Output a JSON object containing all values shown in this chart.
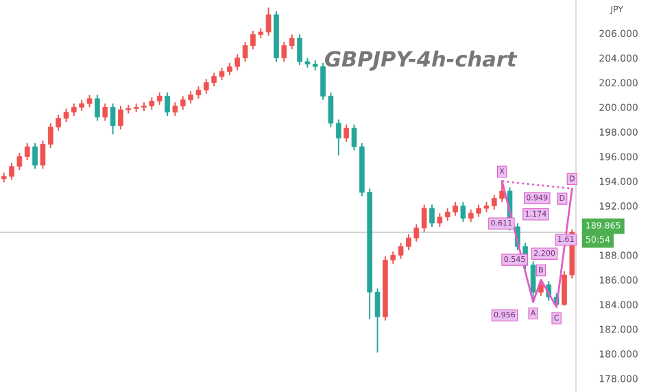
{
  "chart_data": {
    "type": "candlestick",
    "title": "GBPJPY-4h-chart",
    "categories": [
      null,
      null,
      null,
      null,
      null,
      null,
      null,
      null,
      null,
      null,
      null,
      null,
      null,
      null,
      null,
      null,
      null,
      null,
      null,
      null,
      null,
      null,
      null,
      null,
      null,
      null,
      null,
      null,
      null,
      null,
      null,
      null,
      null,
      null,
      null,
      null,
      null,
      null,
      null,
      null,
      null,
      null,
      null,
      null,
      null,
      null,
      null,
      null,
      null,
      null,
      null,
      null,
      null,
      null,
      null,
      null,
      null,
      null,
      null,
      null,
      null,
      null,
      null,
      null,
      null,
      null,
      null,
      null,
      null,
      null,
      null,
      null,
      null,
      null
    ],
    "ohlc": [
      [
        194.2,
        194.7,
        193.9,
        194.4
      ],
      [
        194.4,
        195.5,
        194.1,
        195.2
      ],
      [
        195.2,
        196.3,
        194.9,
        196.0
      ],
      [
        196.0,
        197.1,
        195.7,
        196.8
      ],
      [
        196.8,
        197.1,
        195.0,
        195.3
      ],
      [
        195.3,
        197.3,
        195.0,
        197.0
      ],
      [
        197.0,
        198.7,
        196.7,
        198.4
      ],
      [
        198.4,
        199.4,
        198.1,
        199.1
      ],
      [
        199.1,
        199.9,
        198.8,
        199.6
      ],
      [
        199.6,
        200.3,
        199.3,
        200.0
      ],
      [
        200.0,
        200.6,
        199.7,
        200.3
      ],
      [
        200.3,
        201.0,
        200.0,
        200.7
      ],
      [
        200.7,
        201.0,
        198.9,
        199.2
      ],
      [
        199.2,
        200.3,
        198.9,
        200.0
      ],
      [
        200.0,
        200.3,
        197.8,
        198.5
      ],
      [
        198.5,
        200.1,
        198.2,
        199.8
      ],
      [
        199.8,
        200.2,
        199.5,
        199.9
      ],
      [
        199.9,
        200.3,
        199.6,
        200.0
      ],
      [
        200.0,
        200.4,
        199.7,
        200.1
      ],
      [
        200.1,
        200.8,
        199.8,
        200.5
      ],
      [
        200.5,
        201.2,
        200.2,
        200.9
      ],
      [
        200.9,
        201.2,
        199.3,
        199.6
      ],
      [
        199.6,
        200.4,
        199.3,
        200.1
      ],
      [
        200.1,
        200.9,
        199.8,
        200.6
      ],
      [
        200.6,
        201.3,
        200.3,
        201.0
      ],
      [
        201.0,
        201.7,
        200.7,
        201.4
      ],
      [
        201.4,
        202.3,
        201.1,
        202.0
      ],
      [
        202.0,
        202.8,
        201.7,
        202.5
      ],
      [
        202.5,
        203.2,
        202.2,
        202.9
      ],
      [
        202.9,
        203.6,
        202.6,
        203.3
      ],
      [
        203.3,
        204.3,
        203.0,
        204.0
      ],
      [
        204.0,
        205.3,
        203.7,
        205.0
      ],
      [
        205.0,
        206.2,
        204.7,
        205.9
      ],
      [
        205.9,
        206.4,
        205.6,
        206.1
      ],
      [
        206.1,
        208.1,
        205.8,
        207.5
      ],
      [
        207.5,
        207.8,
        203.7,
        204.0
      ],
      [
        204.0,
        205.3,
        203.7,
        205.0
      ],
      [
        205.0,
        205.9,
        204.7,
        205.6
      ],
      [
        205.6,
        205.9,
        203.4,
        203.7
      ],
      [
        203.7,
        204.0,
        203.2,
        203.5
      ],
      [
        203.5,
        203.8,
        203.0,
        203.3
      ],
      [
        203.3,
        203.6,
        200.6,
        200.9
      ],
      [
        200.9,
        201.2,
        198.4,
        198.7
      ],
      [
        198.7,
        199.0,
        196.1,
        197.5
      ],
      [
        197.5,
        198.6,
        197.2,
        198.3
      ],
      [
        198.3,
        198.6,
        196.5,
        196.8
      ],
      [
        196.8,
        197.1,
        192.8,
        193.1
      ],
      [
        193.1,
        193.4,
        182.8,
        185.0
      ],
      [
        185.0,
        185.3,
        180.1,
        183.0
      ],
      [
        183.0,
        187.9,
        182.7,
        187.6
      ],
      [
        187.6,
        188.3,
        187.3,
        188.0
      ],
      [
        188.0,
        189.0,
        187.7,
        188.7
      ],
      [
        188.7,
        189.7,
        188.4,
        189.4
      ],
      [
        189.4,
        190.5,
        189.1,
        190.2
      ],
      [
        190.2,
        192.1,
        189.9,
        191.8
      ],
      [
        191.8,
        192.1,
        190.3,
        190.6
      ],
      [
        190.6,
        191.4,
        190.3,
        191.1
      ],
      [
        191.1,
        191.8,
        190.8,
        191.5
      ],
      [
        191.5,
        192.3,
        191.2,
        192.0
      ],
      [
        192.0,
        192.3,
        190.7,
        191.0
      ],
      [
        191.0,
        191.7,
        190.7,
        191.4
      ],
      [
        191.4,
        192.1,
        191.1,
        191.8
      ],
      [
        191.8,
        192.3,
        191.5,
        192.0
      ],
      [
        192.0,
        192.9,
        191.7,
        192.6
      ],
      [
        192.6,
        194.0,
        192.3,
        193.2
      ],
      [
        193.2,
        193.5,
        190.0,
        190.3
      ],
      [
        190.3,
        190.6,
        188.4,
        188.7
      ],
      [
        188.7,
        189.0,
        186.9,
        187.2
      ],
      [
        187.2,
        187.5,
        184.2,
        185.0
      ],
      [
        185.0,
        186.0,
        184.7,
        185.6
      ],
      [
        185.6,
        185.9,
        184.3,
        184.6
      ],
      [
        184.6,
        184.9,
        183.8,
        184.0
      ],
      [
        184.0,
        186.7,
        183.9,
        186.4
      ],
      [
        186.4,
        190.1,
        186.1,
        189.865
      ]
    ],
    "colors": [
      "#ef5350",
      "#ef5350",
      "#ef5350",
      "#ef5350",
      "#26a69a",
      "#ef5350",
      "#ef5350",
      "#ef5350",
      "#ef5350",
      "#ef5350",
      "#ef5350",
      "#ef5350",
      "#26a69a",
      "#ef5350",
      "#26a69a",
      "#ef5350",
      "#ef5350",
      "#ef5350",
      "#ef5350",
      "#ef5350",
      "#ef5350",
      "#26a69a",
      "#ef5350",
      "#ef5350",
      "#ef5350",
      "#ef5350",
      "#ef5350",
      "#ef5350",
      "#ef5350",
      "#ef5350",
      "#ef5350",
      "#ef5350",
      "#ef5350",
      "#ef5350",
      "#ef5350",
      "#26a69a",
      "#ef5350",
      "#ef5350",
      "#26a69a",
      "#26a69a",
      "#26a69a",
      "#26a69a",
      "#26a69a",
      "#26a69a",
      "#ef5350",
      "#26a69a",
      "#26a69a",
      "#26a69a",
      "#26a69a",
      "#ef5350",
      "#ef5350",
      "#ef5350",
      "#ef5350",
      "#ef5350",
      "#ef5350",
      "#26a69a",
      "#ef5350",
      "#ef5350",
      "#ef5350",
      "#26a69a",
      "#ef5350",
      "#ef5350",
      "#ef5350",
      "#ef5350",
      "#ef5350",
      "#26a69a",
      "#26a69a",
      "#26a69a",
      "#26a69a",
      "#ef5350",
      "#26a69a",
      "#26a69a",
      "#ef5350",
      "#ef5350"
    ],
    "series": [
      {
        "type": "line",
        "color": "#e05cc8",
        "values": [
          null,
          null,
          null,
          null,
          null,
          null,
          null,
          null,
          null,
          null,
          null,
          null,
          null,
          null,
          null,
          null,
          null,
          null,
          null,
          null,
          null,
          null,
          null,
          null,
          null,
          null,
          null,
          null,
          null,
          null,
          null,
          null,
          null,
          null,
          null,
          null,
          null,
          null,
          null,
          null,
          null,
          null,
          null,
          null,
          null,
          null,
          null,
          null,
          null,
          null,
          null,
          null,
          null,
          null,
          null,
          null,
          null,
          null,
          null,
          null,
          null,
          null,
          null,
          null,
          194.0,
          null,
          null,
          null,
          184.2,
          186.0,
          null,
          183.8,
          null,
          193.4
        ],
        "value_labels": [
          null,
          null,
          null,
          null,
          null,
          null,
          null,
          null,
          null,
          null,
          null,
          null,
          null,
          null,
          null,
          null,
          null,
          null,
          null,
          null,
          null,
          null,
          null,
          null,
          null,
          null,
          null,
          null,
          null,
          null,
          null,
          null,
          null,
          null,
          null,
          null,
          null,
          null,
          null,
          null,
          null,
          null,
          null,
          null,
          null,
          null,
          null,
          null,
          null,
          null,
          null,
          null,
          null,
          null,
          null,
          null,
          null,
          null,
          null,
          null,
          null,
          null,
          null,
          null,
          "X",
          null,
          null,
          null,
          "A",
          "B",
          null,
          "C",
          null,
          "D"
        ]
      },
      {
        "type": "line",
        "color": "#e05cc8",
        "line_style": "dotted",
        "values": [
          null,
          null,
          null,
          null,
          null,
          null,
          null,
          null,
          null,
          null,
          null,
          null,
          null,
          null,
          null,
          null,
          null,
          null,
          null,
          null,
          null,
          null,
          null,
          null,
          null,
          null,
          null,
          null,
          null,
          null,
          null,
          null,
          null,
          null,
          null,
          null,
          null,
          null,
          null,
          null,
          null,
          null,
          null,
          null,
          null,
          null,
          null,
          null,
          null,
          null,
          null,
          null,
          null,
          null,
          null,
          null,
          null,
          null,
          null,
          null,
          null,
          null,
          null,
          null,
          194.0,
          null,
          null,
          null,
          null,
          null,
          null,
          null,
          null,
          193.4
        ]
      }
    ],
    "ylim": [
      176.9,
      208.7
    ],
    "yticks": [
      {
        "value": 178,
        "label": "178.000"
      },
      {
        "value": 180,
        "label": "180.000"
      },
      {
        "value": 182,
        "label": "182.000"
      },
      {
        "value": 184,
        "label": "184.000"
      },
      {
        "value": 186,
        "label": "186.000"
      },
      {
        "value": 188,
        "label": "188.000"
      },
      {
        "value": 190,
        "label": null
      },
      {
        "value": 192,
        "label": "192.000"
      },
      {
        "value": 194,
        "label": "194.000"
      },
      {
        "value": 196,
        "label": "196.000"
      },
      {
        "value": 198,
        "label": "198.000"
      },
      {
        "value": 200,
        "label": "200.000"
      },
      {
        "value": 202,
        "label": "202.000"
      },
      {
        "value": 204,
        "label": "204.000"
      },
      {
        "value": 206,
        "label": "206.000"
      }
    ],
    "tick_labels": "y",
    "grid": false,
    "ref_lines": [
      {
        "axis": "y",
        "value": 189.865,
        "label": "189.865",
        "color": "#c8c8c8"
      }
    ],
    "annotations": [
      "JPY",
      "50:54",
      "0.949",
      "0.611",
      "1.174",
      "0.545",
      "2.200",
      "0.956",
      "1.61",
      "D"
    ]
  }
}
